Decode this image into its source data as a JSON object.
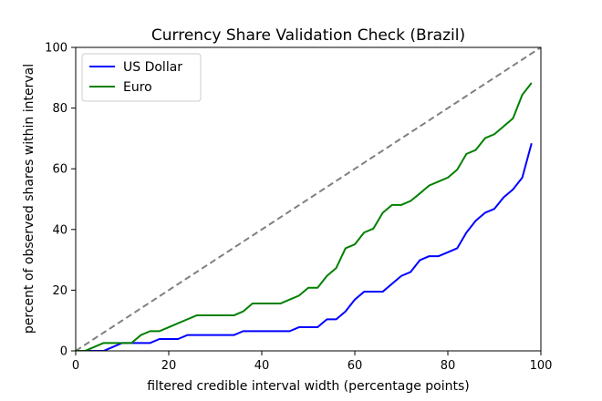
{
  "chart_data": {
    "type": "line",
    "title": "Currency Share Validation Check (Brazil)",
    "xlabel": "filtered credible interval width (percentage points)",
    "ylabel": "percent of observed shares within interval",
    "xlim": [
      0,
      100
    ],
    "ylim": [
      0,
      100
    ],
    "xticks": [
      0,
      20,
      40,
      60,
      80,
      100
    ],
    "yticks": [
      0,
      20,
      40,
      60,
      80,
      100
    ],
    "grid": false,
    "legend_position": "top-left",
    "reference_line": {
      "style": "dashed",
      "color": "#808080",
      "from": [
        0,
        0
      ],
      "to": [
        100,
        100
      ]
    },
    "series": [
      {
        "name": "US Dollar",
        "color": "#0000ff",
        "x": [
          0,
          2,
          4,
          6,
          8,
          10,
          12,
          14,
          16,
          18,
          20,
          22,
          24,
          26,
          28,
          30,
          32,
          34,
          36,
          38,
          40,
          42,
          44,
          46,
          48,
          50,
          52,
          54,
          56,
          58,
          60,
          62,
          64,
          66,
          68,
          70,
          72,
          74,
          76,
          78,
          80,
          82,
          84,
          86,
          88,
          90,
          92,
          94,
          96,
          98
        ],
        "y": [
          0,
          0,
          0,
          0,
          1.3,
          2.6,
          2.6,
          2.6,
          2.6,
          3.9,
          3.9,
          3.9,
          5.2,
          5.2,
          5.2,
          5.2,
          5.2,
          5.2,
          6.5,
          6.5,
          6.5,
          6.5,
          6.5,
          6.5,
          7.8,
          7.8,
          7.8,
          10.4,
          10.4,
          13.0,
          16.9,
          19.5,
          19.5,
          19.5,
          22.1,
          24.7,
          26.0,
          29.9,
          31.2,
          31.2,
          32.5,
          33.8,
          39.0,
          42.9,
          45.5,
          46.8,
          50.6,
          53.2,
          57.1,
          68.4
        ]
      },
      {
        "name": "Euro",
        "color": "#008000",
        "x": [
          0,
          2,
          4,
          6,
          8,
          10,
          12,
          14,
          16,
          18,
          20,
          22,
          24,
          26,
          28,
          30,
          32,
          34,
          36,
          38,
          40,
          42,
          44,
          46,
          48,
          50,
          52,
          54,
          56,
          58,
          60,
          62,
          64,
          66,
          68,
          70,
          72,
          74,
          76,
          78,
          80,
          82,
          84,
          86,
          88,
          90,
          92,
          94,
          96,
          98
        ],
        "y": [
          0,
          0,
          1.3,
          2.6,
          2.6,
          2.6,
          2.6,
          5.2,
          6.5,
          6.5,
          7.8,
          9.1,
          10.4,
          11.7,
          11.7,
          11.7,
          11.7,
          11.7,
          13.0,
          15.6,
          15.6,
          15.6,
          15.6,
          16.9,
          18.2,
          20.8,
          20.8,
          24.7,
          27.3,
          33.8,
          35.1,
          39.0,
          40.3,
          45.5,
          48.1,
          48.1,
          49.4,
          51.9,
          54.5,
          55.8,
          57.1,
          59.7,
          64.9,
          66.2,
          70.1,
          71.4,
          74.0,
          76.6,
          84.4,
          88.3
        ]
      }
    ]
  }
}
